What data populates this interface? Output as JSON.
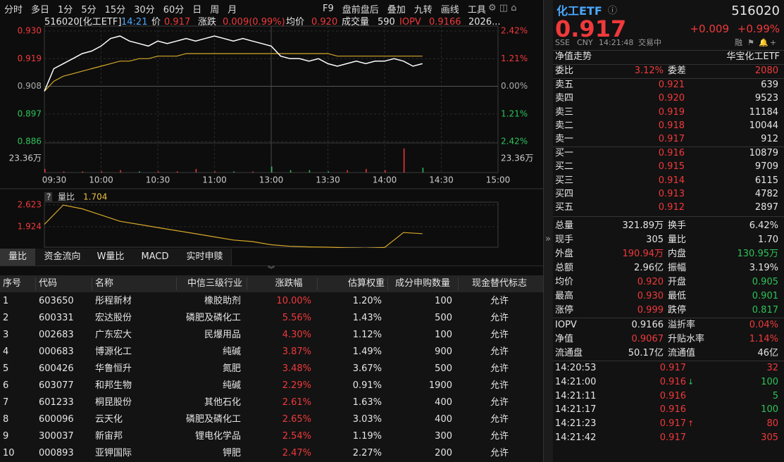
{
  "toolbar": {
    "left": [
      "分时",
      "多日",
      "1分",
      "5分",
      "15分",
      "30分",
      "60分",
      "日",
      "周",
      "月"
    ],
    "right": [
      "F9",
      "盘前盘后",
      "叠加",
      "九转",
      "画线",
      "工具"
    ]
  },
  "chart_header": {
    "code": "516020[化工ETF]",
    "time": "14:21",
    "price_label": "价",
    "price": "0.917",
    "change_label": "涨跌",
    "change": "0.009(0.99%)",
    "avg_label": "均价",
    "avg": "0.920",
    "volume_label": "成交量",
    "volume": "590",
    "iopv_label": "IOPV",
    "iopv": "0.9166",
    "date": "2026..."
  },
  "price_chart": {
    "yticks": [
      {
        "value": 0.93,
        "label": "0.930"
      },
      {
        "value": 0.919,
        "label": "0.919"
      },
      {
        "value": 0.908,
        "label": "0.908"
      },
      {
        "value": 0.897,
        "label": "0.897"
      },
      {
        "value": 0.886,
        "label": "0.886"
      }
    ],
    "pct_ticks": [
      "2.42%",
      "1.21%",
      "0.00%",
      "1.21%",
      "2.42%"
    ],
    "volume_max": {
      "value": 23.36,
      "label": "23.36万"
    },
    "xticks": [
      "09:30",
      "10:00",
      "10:30",
      "11:00",
      "13:00",
      "13:30",
      "14:00",
      "14:30",
      "15:00"
    ],
    "price": [
      0.906,
      0.915,
      0.917,
      0.919,
      0.921,
      0.922,
      0.924,
      0.927,
      0.928,
      0.926,
      0.925,
      0.924,
      0.926,
      0.925,
      0.926,
      0.927,
      0.926,
      0.927,
      0.928,
      0.927,
      0.926,
      0.927,
      0.926,
      0.925,
      0.924,
      0.92,
      0.919,
      0.919,
      0.918,
      0.919,
      0.917,
      0.916,
      0.917,
      0.918,
      0.917,
      0.918,
      0.918,
      0.919,
      0.918,
      0.916,
      0.917
    ],
    "average": [
      0.906,
      0.91,
      0.912,
      0.913,
      0.914,
      0.915,
      0.916,
      0.917,
      0.918,
      0.918,
      0.919,
      0.919,
      0.92,
      0.92,
      0.92,
      0.921,
      0.921,
      0.921,
      0.921,
      0.921,
      0.921,
      0.921,
      0.921,
      0.921,
      0.921,
      0.921,
      0.921,
      0.921,
      0.921,
      0.921,
      0.921,
      0.92,
      0.92,
      0.92,
      0.92,
      0.92,
      0.92,
      0.92,
      0.92,
      0.92,
      0.92
    ],
    "volume": [
      3,
      1,
      1,
      1,
      2,
      1,
      1,
      1,
      3,
      1,
      1,
      1,
      5,
      2,
      2,
      1,
      2,
      3,
      2,
      20,
      4
    ]
  },
  "ratio_chart": {
    "label": "量比",
    "current": "1.704",
    "yticks": [
      {
        "value": 2.623,
        "label": "2.623"
      },
      {
        "value": 1.924,
        "label": "1.924"
      }
    ],
    "values": [
      2.0,
      2.62,
      2.5,
      2.3,
      2.1,
      2.0,
      1.9,
      1.8,
      1.7,
      1.6,
      1.5,
      1.45,
      1.35,
      1.3,
      1.28,
      1.27,
      1.25,
      1.24,
      1.26,
      1.74,
      1.704
    ]
  },
  "tabs": [
    "量比",
    "资金流向",
    "W量比",
    "MACD",
    "实时申赎"
  ],
  "table": {
    "columns": [
      "序号",
      "代码",
      "名称",
      "中信三级行业",
      "涨跌幅",
      "估算权重",
      "成分申购数量",
      "现金替代标志"
    ],
    "rows": [
      [
        "1",
        "603650",
        "彤程新材",
        "橡胶助剂",
        "10.00%",
        "1.20%",
        "100",
        "允许"
      ],
      [
        "2",
        "600331",
        "宏达股份",
        "磷肥及磷化工",
        "5.56%",
        "1.43%",
        "500",
        "允许"
      ],
      [
        "3",
        "002683",
        "广东宏大",
        "民爆用品",
        "4.30%",
        "1.12%",
        "100",
        "允许"
      ],
      [
        "4",
        "000683",
        "博源化工",
        "纯碱",
        "3.87%",
        "1.49%",
        "900",
        "允许"
      ],
      [
        "5",
        "600426",
        "华鲁恒升",
        "氮肥",
        "3.48%",
        "3.67%",
        "500",
        "允许"
      ],
      [
        "6",
        "603077",
        "和邦生物",
        "纯碱",
        "2.29%",
        "0.91%",
        "1900",
        "允许"
      ],
      [
        "7",
        "601233",
        "桐昆股份",
        "其他石化",
        "2.61%",
        "1.63%",
        "400",
        "允许"
      ],
      [
        "8",
        "600096",
        "云天化",
        "磷肥及磷化工",
        "2.65%",
        "3.03%",
        "400",
        "允许"
      ],
      [
        "9",
        "300037",
        "新宙邦",
        "锂电化学品",
        "2.54%",
        "1.19%",
        "300",
        "允许"
      ],
      [
        "10",
        "000893",
        "亚钾国际",
        "钾肥",
        "2.47%",
        "2.27%",
        "200",
        "允许"
      ]
    ]
  },
  "quote": {
    "name": "化工ETF",
    "code": "516020",
    "price": "0.917",
    "change": "+0.009",
    "change_pct": "+0.99%",
    "meta": [
      "SSE",
      "CNY",
      "14:21:48",
      "交易中"
    ],
    "nav_label": "净值走势",
    "fund_name": "华宝化工ETF",
    "tag": "融",
    "wb_label": "委比",
    "wb": "3.12%",
    "wc_label": "委差",
    "wc": "2080",
    "asks": [
      [
        "卖五",
        "0.921",
        "639"
      ],
      [
        "卖四",
        "0.920",
        "9523"
      ],
      [
        "卖三",
        "0.919",
        "11184"
      ],
      [
        "卖二",
        "0.918",
        "10044"
      ],
      [
        "卖一",
        "0.917",
        "912"
      ]
    ],
    "bids": [
      [
        "买一",
        "0.916",
        "10879"
      ],
      [
        "买二",
        "0.915",
        "9709"
      ],
      [
        "买三",
        "0.914",
        "6115"
      ],
      [
        "买四",
        "0.913",
        "4782"
      ],
      [
        "买五",
        "0.912",
        "2897"
      ]
    ],
    "stats": [
      [
        "总量",
        "321.89万",
        "换手",
        "6.42%"
      ],
      [
        "现手",
        "305",
        "量比",
        "1.70"
      ],
      [
        "外盘",
        "190.94万",
        "内盘",
        "130.95万"
      ],
      [
        "总额",
        "2.96亿",
        "振幅",
        "3.19%"
      ],
      [
        "均价",
        "0.920",
        "开盘",
        "0.905"
      ],
      [
        "最高",
        "0.930",
        "最低",
        "0.901"
      ],
      [
        "涨停",
        "0.999",
        "跌停",
        "0.817"
      ]
    ],
    "iopv": [
      [
        "IOPV",
        "0.9166",
        "溢折率",
        "0.04%"
      ],
      [
        "净值",
        "0.9067",
        "升贴水率",
        "1.14%"
      ],
      [
        "流通盘",
        "50.17亿",
        "流通值",
        "46亿"
      ]
    ],
    "ticks": [
      [
        "14:20:53",
        "0.917",
        "32"
      ],
      [
        "14:21:00",
        "0.916",
        "100"
      ],
      [
        "14:21:11",
        "0.916",
        "5"
      ],
      [
        "14:21:17",
        "0.916",
        "100"
      ],
      [
        "14:21:23",
        "0.917",
        "80"
      ],
      [
        "14:21:42",
        "0.917",
        "305"
      ]
    ]
  }
}
